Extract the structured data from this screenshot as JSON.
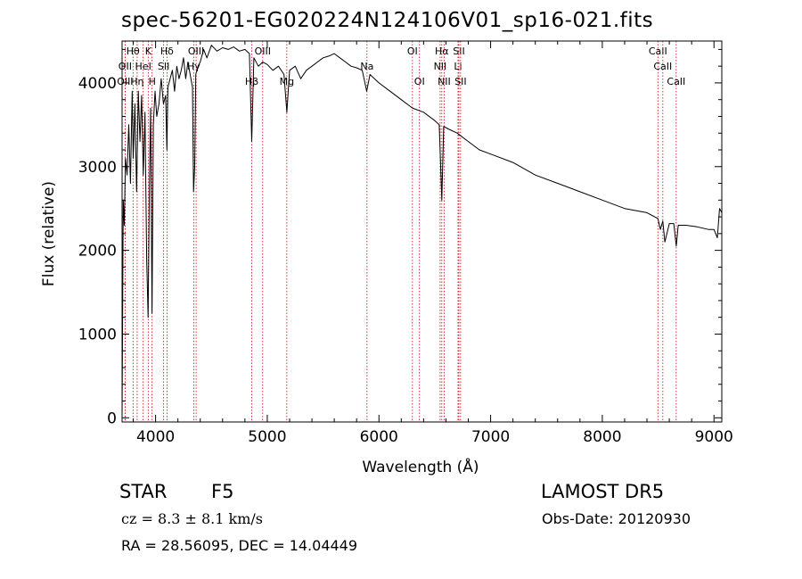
{
  "chart_data": {
    "type": "line",
    "title": "spec-56201-EG020224N124106V01_sp16-021.fits",
    "xlabel": "Wavelength (Å)",
    "ylabel": "Flux (relative)",
    "xlim": [
      3700,
      9070
    ],
    "ylim": [
      -50,
      4500
    ],
    "x_ticks": [
      4000,
      5000,
      6000,
      7000,
      8000,
      9000
    ],
    "y_ticks": [
      0,
      1000,
      2000,
      3000,
      4000
    ],
    "line_color": "#000000",
    "marker_color": "#cc0000",
    "series": [
      {
        "x": [
          3700,
          3710,
          3720,
          3730,
          3745,
          3760,
          3775,
          3790,
          3800,
          3815,
          3830,
          3845,
          3860,
          3875,
          3890,
          3905,
          3920,
          3933,
          3945,
          3955,
          3968,
          3980,
          3995,
          4010,
          4030,
          4050,
          4070,
          4090,
          4101,
          4110,
          4130,
          4150,
          4170,
          4190,
          4210,
          4230,
          4250,
          4270,
          4290,
          4310,
          4330,
          4340,
          4350,
          4360,
          4380,
          4400,
          4430,
          4460,
          4500,
          4550,
          4600,
          4650,
          4700,
          4750,
          4800,
          4840,
          4861,
          4880,
          4920,
          4960,
          5000,
          5050,
          5100,
          5150,
          5175,
          5200,
          5250,
          5300,
          5350,
          5400,
          5450,
          5500,
          5550,
          5600,
          5650,
          5700,
          5750,
          5800,
          5850,
          5890,
          5920,
          5960,
          6000,
          6100,
          6200,
          6300,
          6400,
          6500,
          6540,
          6563,
          6580,
          6620,
          6700,
          6800,
          6900,
          7000,
          7200,
          7400,
          7600,
          7800,
          8000,
          8200,
          8400,
          8498,
          8520,
          8542,
          8560,
          8600,
          8640,
          8662,
          8680,
          8750,
          8850,
          8950,
          9000,
          9030,
          9050,
          9070
        ],
        "values": [
          0,
          2600,
          2300,
          3100,
          2900,
          3500,
          2800,
          3900,
          3100,
          3750,
          2700,
          3900,
          3300,
          3850,
          2900,
          3650,
          1900,
          1200,
          2800,
          3700,
          1250,
          3500,
          3900,
          3600,
          3750,
          4050,
          3750,
          3850,
          3200,
          3950,
          4050,
          4150,
          3900,
          4200,
          4050,
          4150,
          4300,
          4050,
          4250,
          4100,
          3950,
          2700,
          3000,
          4100,
          4200,
          4250,
          4400,
          4300,
          4450,
          4380,
          4420,
          4400,
          4430,
          4380,
          4400,
          4350,
          3300,
          4300,
          4200,
          4250,
          4220,
          4150,
          4200,
          4100,
          3650,
          4150,
          4200,
          4050,
          4150,
          4200,
          4250,
          4300,
          4320,
          4350,
          4300,
          4250,
          4200,
          4180,
          4150,
          3900,
          4100,
          4050,
          4000,
          3900,
          3800,
          3700,
          3650,
          3550,
          3500,
          2600,
          3480,
          3450,
          3400,
          3300,
          3200,
          3150,
          3050,
          2900,
          2800,
          2700,
          2600,
          2500,
          2450,
          2380,
          2250,
          2350,
          2100,
          2320,
          2320,
          2050,
          2300,
          2300,
          2280,
          2250,
          2250,
          2150,
          2500,
          2450
        ]
      }
    ],
    "line_markers": [
      {
        "label": "Hθ",
        "x": 3798,
        "row": 1
      },
      {
        "label": "OII",
        "x": 3727,
        "row": 2
      },
      {
        "label": "OIII",
        "x": 3727,
        "row": 3
      },
      {
        "label": "K",
        "x": 3934,
        "row": 1
      },
      {
        "label": "HeI",
        "x": 3889,
        "row": 2
      },
      {
        "label": "Hη",
        "x": 3835,
        "row": 3
      },
      {
        "label": "SII",
        "x": 4072,
        "row": 2
      },
      {
        "label": "H",
        "x": 3969,
        "row": 3
      },
      {
        "label": "Hδ",
        "x": 4102,
        "row": 1
      },
      {
        "label": "OIII",
        "x": 4363,
        "row": 1
      },
      {
        "label": "Hγ",
        "x": 4341,
        "row": 2
      },
      {
        "label": "OIII",
        "x": 4959,
        "row": 1
      },
      {
        "label": "Hβ",
        "x": 4861,
        "row": 3
      },
      {
        "label": "Mg",
        "x": 5175,
        "row": 3
      },
      {
        "label": "Na",
        "x": 5893,
        "row": 2
      },
      {
        "label": "OI",
        "x": 6300,
        "row": 1
      },
      {
        "label": "OI",
        "x": 6363,
        "row": 3
      },
      {
        "label": "Hα",
        "x": 6563,
        "row": 1
      },
      {
        "label": "SII",
        "x": 6716,
        "row": 1
      },
      {
        "label": "NII",
        "x": 6548,
        "row": 2
      },
      {
        "label": "Li",
        "x": 6708,
        "row": 2
      },
      {
        "label": "NII",
        "x": 6584,
        "row": 3
      },
      {
        "label": "SII",
        "x": 6731,
        "row": 3
      },
      {
        "label": "CaII",
        "x": 8498,
        "row": 1
      },
      {
        "label": "CaII",
        "x": 8542,
        "row": 2
      },
      {
        "label": "CaII",
        "x": 8662,
        "row": 3
      }
    ]
  },
  "info": {
    "object_type": "STAR",
    "subclass": "F5",
    "survey": "LAMOST DR5",
    "cz": "cz = 8.3 ± 8.1 km/s",
    "obs_date": "Obs-Date: 20120930",
    "ra_dec": "RA =  28.56095, DEC =  14.04449"
  }
}
